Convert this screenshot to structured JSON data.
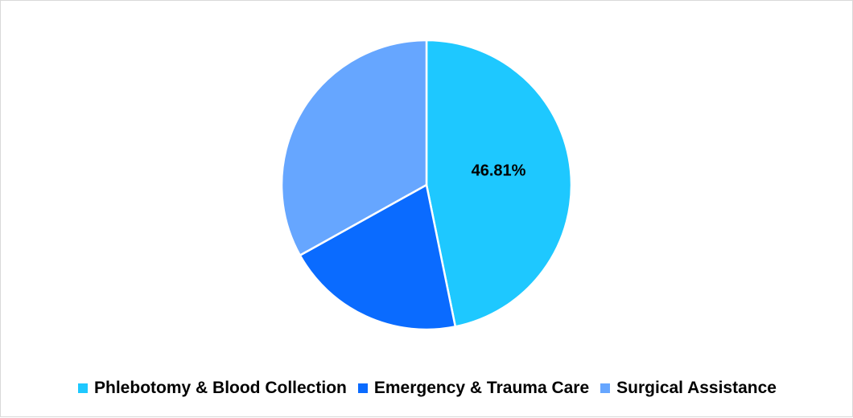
{
  "chart_data": {
    "type": "pie",
    "title": "",
    "legend_position": "bottom",
    "slices": [
      {
        "label": "Phlebotomy & Blood Collection",
        "value": 46.81,
        "color": "#1ec8ff",
        "data_label": "46.81%"
      },
      {
        "label": "Emergency & Trauma Care",
        "value": 20.1,
        "color": "#0a6bff",
        "data_label": ""
      },
      {
        "label": "Surgical Assistance",
        "value": 33.09,
        "color": "#66a6ff",
        "data_label": ""
      }
    ]
  }
}
